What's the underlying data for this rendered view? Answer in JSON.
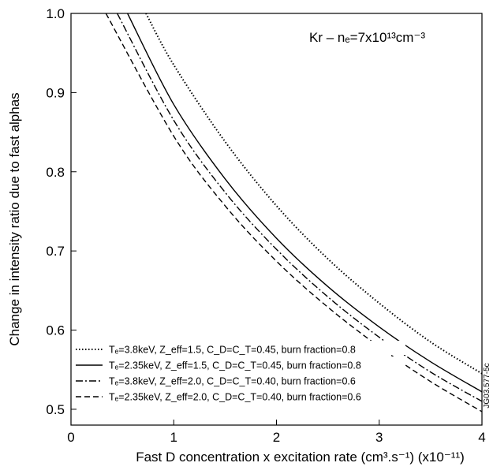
{
  "chart_data": {
    "type": "line",
    "xlabel": "Fast D concentration x excitation rate (cm³.s⁻¹) (x10⁻¹¹)",
    "ylabel": "Change in intensity ratio due to fast alphas",
    "xlim": [
      0,
      4
    ],
    "ylim": [
      0.48,
      1.0
    ],
    "xticks": [
      "0",
      "1",
      "2",
      "3",
      "4"
    ],
    "yticks": [
      "0.5",
      "0.6",
      "0.7",
      "0.8",
      "0.9",
      "1.0"
    ],
    "annotation": "Kr – nₑ=7x10¹³cm⁻³",
    "watermark": "JG03.577-5c",
    "grid": false,
    "legend_position": "bottom-left",
    "series": [
      {
        "name": "Tₑ=3.8keV, Z_eff=1.5, C_D=C_T=0.45, burn fraction=0.8",
        "style": "dotted",
        "x": [
          0.73,
          1.0,
          1.5,
          2.0,
          2.5,
          3.0,
          3.5,
          4.0
        ],
        "y": [
          1.0,
          0.935,
          0.838,
          0.757,
          0.69,
          0.634,
          0.585,
          0.545
        ]
      },
      {
        "name": "Tₑ=2.35keV, Z_eff=1.5, C_D=C_T=0.45, burn fraction=0.8",
        "style": "solid",
        "x": [
          0.55,
          1.0,
          1.5,
          2.0,
          2.5,
          3.0,
          3.5,
          4.0
        ],
        "y": [
          1.0,
          0.885,
          0.791,
          0.716,
          0.655,
          0.604,
          0.56,
          0.522
        ]
      },
      {
        "name": "Tₑ=3.8keV, Z_eff=2.0, C_D=C_T=0.40, burn fraction=0.6",
        "style": "dash-dot",
        "x": [
          0.45,
          1.0,
          1.5,
          2.0,
          2.5,
          3.0,
          3.5,
          4.0
        ],
        "y": [
          1.0,
          0.865,
          0.774,
          0.702,
          0.642,
          0.591,
          0.547,
          0.51
        ]
      },
      {
        "name": "Tₑ=2.35keV, Z_eff=2.0, C_D=C_T=0.40, burn fraction=0.6",
        "style": "dashed",
        "x": [
          0.34,
          1.0,
          1.5,
          2.0,
          2.5,
          3.0,
          3.5,
          4.0
        ],
        "y": [
          1.0,
          0.845,
          0.757,
          0.687,
          0.629,
          0.579,
          0.535,
          0.497
        ]
      }
    ]
  }
}
